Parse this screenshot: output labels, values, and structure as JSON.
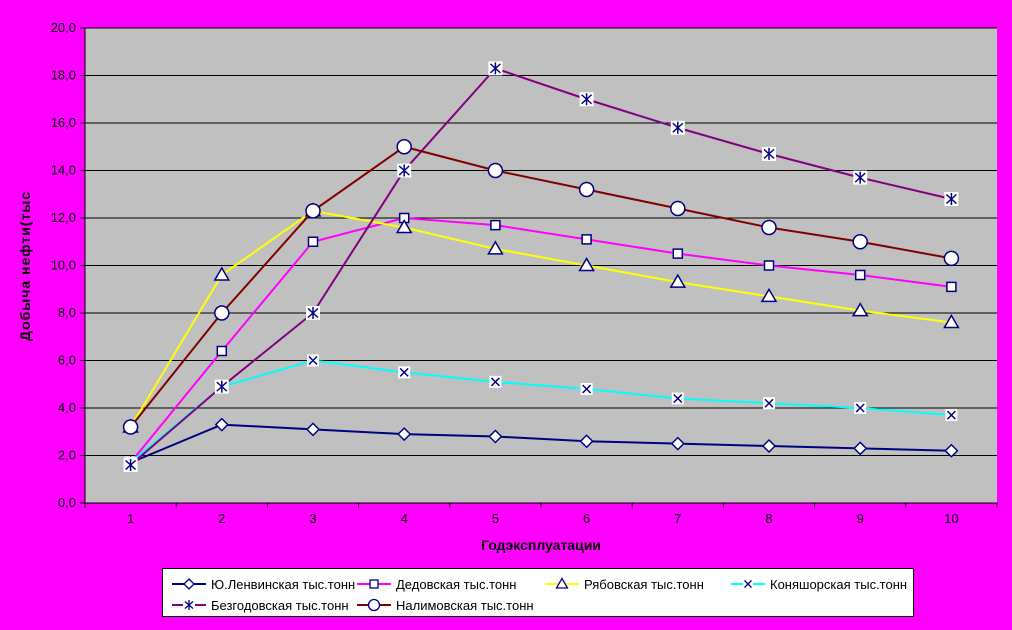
{
  "chart_data": {
    "type": "line",
    "x": [
      1,
      2,
      3,
      4,
      5,
      6,
      7,
      8,
      9,
      10
    ],
    "x_labels": [
      "1",
      "2",
      "3",
      "4",
      "5",
      "6",
      "7",
      "8",
      "9",
      "10"
    ],
    "series": [
      {
        "name": "Ю.Ленвинская тыс.тонн",
        "color": "#000080",
        "marker": "diamond",
        "values": [
          1.7,
          3.3,
          3.1,
          2.9,
          2.8,
          2.6,
          2.5,
          2.4,
          2.3,
          2.2
        ]
      },
      {
        "name": "Дедовская тыс.тонн",
        "color": "#FF00FF",
        "marker": "square",
        "values": [
          1.7,
          6.4,
          11.0,
          12.0,
          11.7,
          11.1,
          10.5,
          10.0,
          9.6,
          9.1
        ]
      },
      {
        "name": "Рябовская тыс.тонн",
        "color": "#FFFF00",
        "marker": "triangle",
        "values": [
          3.2,
          9.6,
          12.3,
          11.6,
          10.7,
          10.0,
          9.3,
          8.7,
          8.1,
          7.6
        ]
      },
      {
        "name": "Коняшорская тыс.тонн",
        "color": "#00FFFF",
        "marker": "x",
        "values": [
          1.7,
          4.9,
          6.0,
          5.5,
          5.1,
          4.8,
          4.4,
          4.2,
          4.0,
          3.7
        ]
      },
      {
        "name": "Безгодовская тыс.тонн",
        "color": "#800080",
        "marker": "star",
        "values": [
          1.6,
          4.9,
          8.0,
          14.0,
          18.3,
          17.0,
          15.8,
          14.7,
          13.7,
          12.8
        ]
      },
      {
        "name": "Налимовская тыс.тонн",
        "color": "#800000",
        "marker": "circle",
        "values": [
          3.2,
          8.0,
          12.3,
          15.0,
          14.0,
          13.2,
          12.4,
          11.6,
          11.0,
          10.3
        ]
      }
    ],
    "title": "",
    "xlabel": "Годэксплуатации",
    "ylabel": "Добыча нефти(тыс",
    "ylim": [
      0,
      20
    ],
    "ytick_step": 2,
    "ytick_labels": [
      "0,0",
      "2,0",
      "4,0",
      "6,0",
      "8,0",
      "10,0",
      "12,0",
      "14,0",
      "16,0",
      "18,0",
      "20,0"
    ],
    "grid": true,
    "legend_position": "bottom"
  },
  "colors": {
    "background": "#FF00FF",
    "plot_background": "#C0C0C0",
    "gridline": "#000000",
    "axis": "#000000",
    "tick_text": "#000000",
    "marker_stroke": "#000080",
    "marker_fill": "#FFFFFF",
    "legend_background": "#FFFFFF",
    "legend_border": "#000000"
  }
}
